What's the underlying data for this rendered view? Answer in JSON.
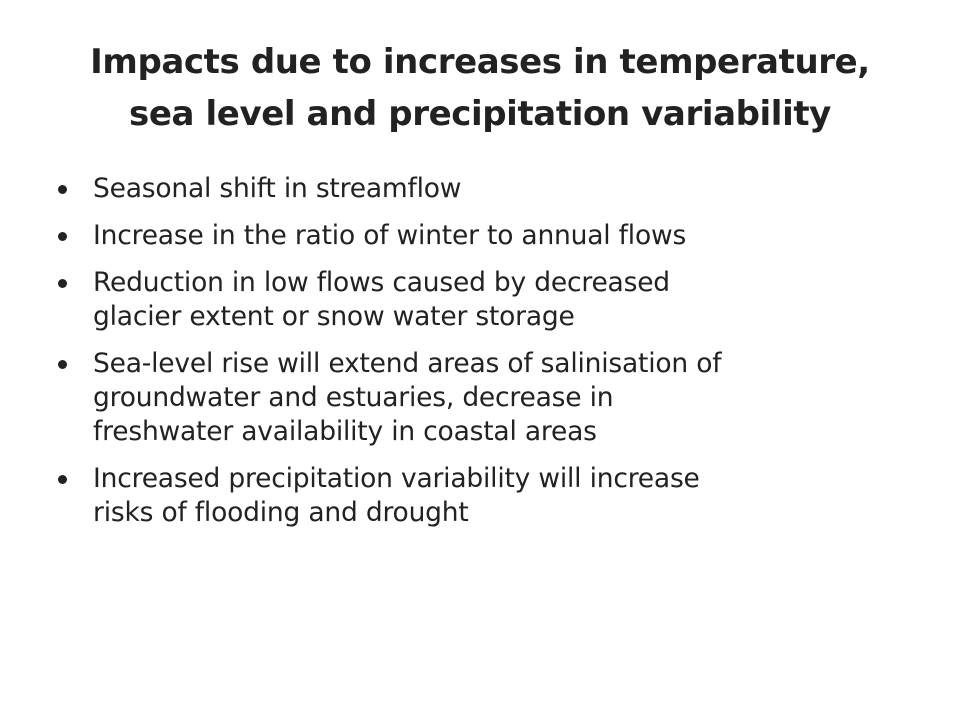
{
  "slide": {
    "title_lines": [
      "Impacts due to increases in temperature,",
      "sea level and precipitation variability"
    ],
    "bullets": [
      {
        "lines": [
          "Seasonal shift in streamflow"
        ]
      },
      {
        "lines": [
          "Increase in the ratio of winter to annual flows"
        ]
      },
      {
        "lines": [
          "Reduction in low flows caused by decreased",
          "glacier extent or snow water storage"
        ]
      },
      {
        "lines": [
          "Sea-level rise will extend areas of salinisation of",
          "groundwater and estuaries, decrease in",
          "freshwater availability in coastal areas"
        ]
      },
      {
        "lines": [
          "Increased precipitation variability will increase",
          "risks of flooding and drought"
        ]
      }
    ]
  }
}
